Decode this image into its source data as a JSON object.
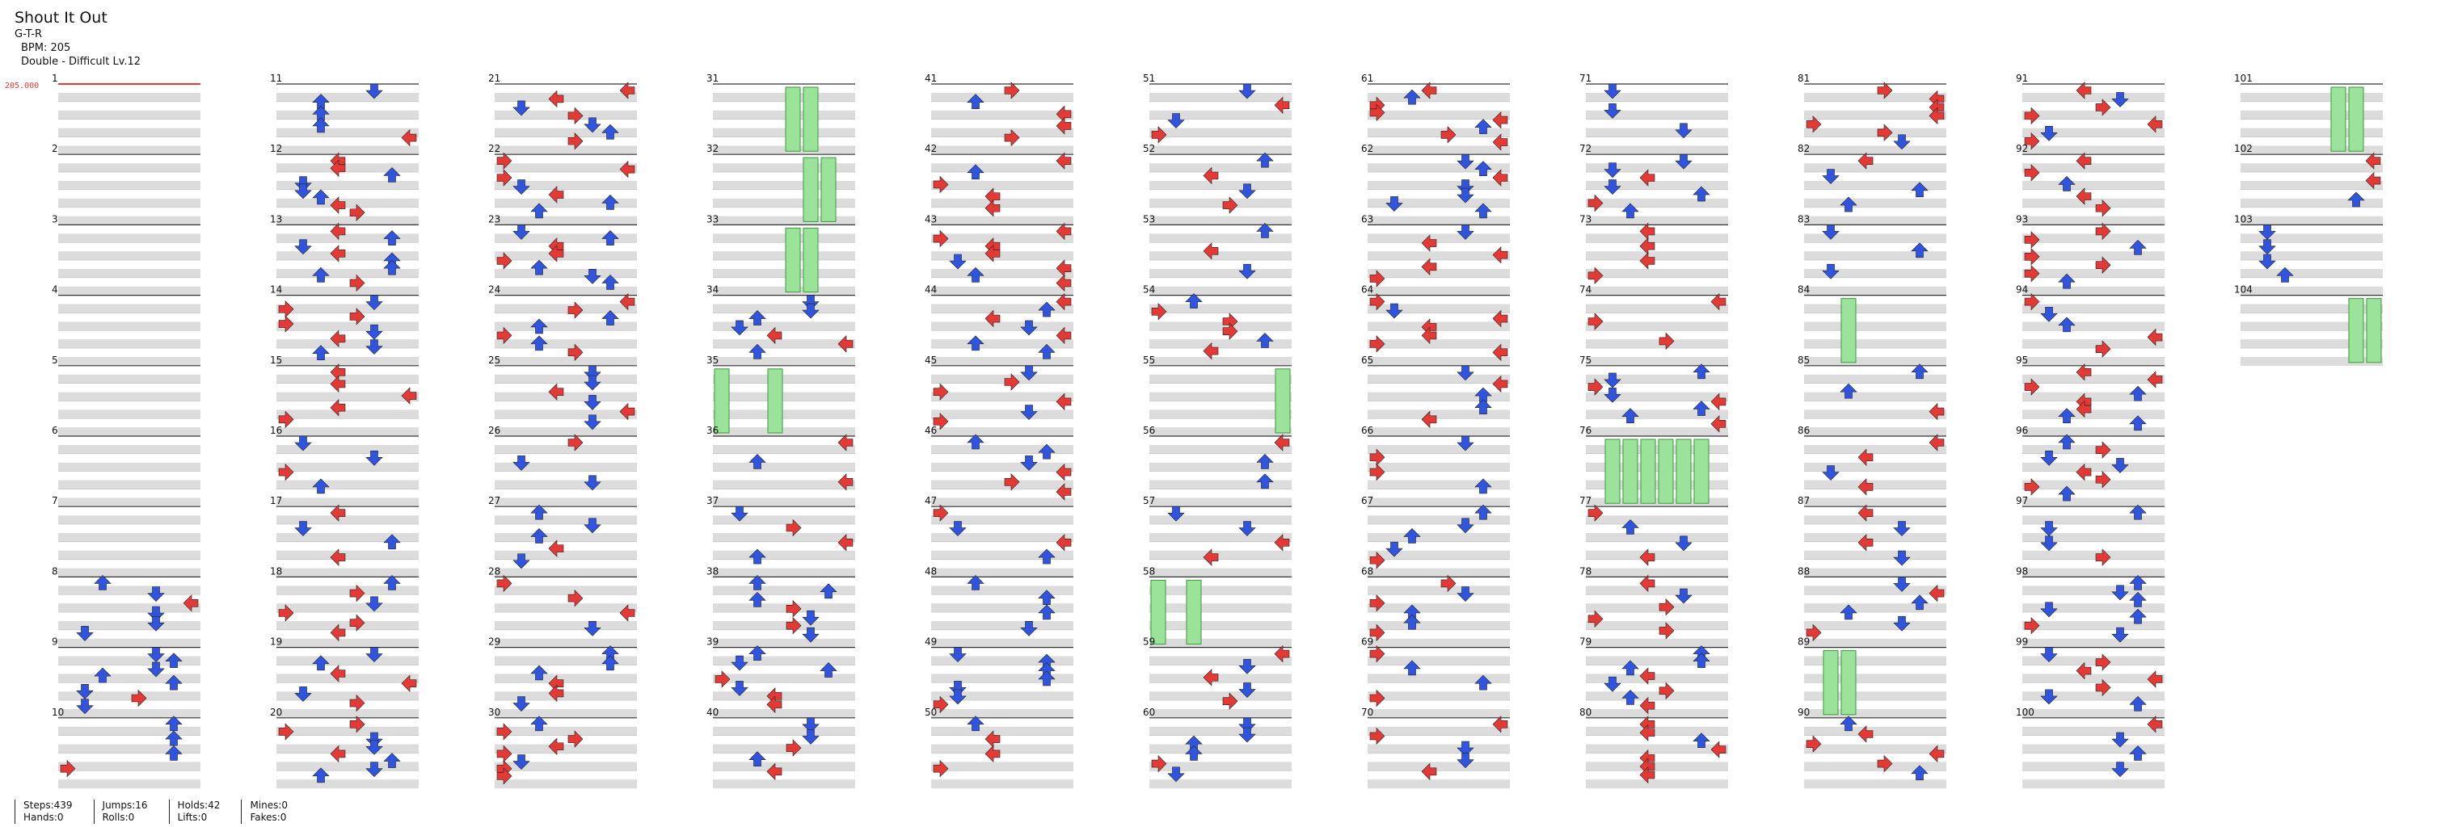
{
  "song": {
    "title": "Shout It Out",
    "artist": "G-T-R",
    "bpm_text": "BPM: 205",
    "difficulty_text": "Double - Difficult  Lv.12"
  },
  "bpm_marker": {
    "label": "205.000",
    "color": "#e53935"
  },
  "stats": [
    {
      "line1": "Steps:439",
      "line2": "Hands:0"
    },
    {
      "line1": "Jumps:16",
      "line2": "Rolls:0"
    },
    {
      "line1": "Holds:42",
      "line2": "Lifts:0"
    },
    {
      "line1": "Mines:0",
      "line2": "Fakes:0"
    }
  ],
  "colors": {
    "red_note": "#e53935",
    "blue_note": "#2f55e0",
    "yellow_note": "#f2d23b",
    "hold_body": "#9be39b",
    "hold_edge": "#3a9a3a",
    "row_shade": "#dcdcdc",
    "beat_line": "#333333"
  },
  "chart_data": {
    "type": "step-chart",
    "mode": "Double",
    "lanes": 8,
    "columns_layout": 11,
    "measures_per_column": 10,
    "total_measures": 104,
    "hold_regions": [
      {
        "measure": 31,
        "lanes": [
          4,
          5
        ]
      },
      {
        "measure": 32,
        "lanes": [
          5,
          6
        ]
      },
      {
        "measure": 33,
        "lanes": [
          4,
          5
        ]
      },
      {
        "measure": 35,
        "lanes": [
          0,
          3
        ]
      },
      {
        "measure": 55,
        "lanes": [
          7
        ]
      },
      {
        "measure": 58,
        "lanes": [
          0,
          2
        ]
      },
      {
        "measure": 76,
        "lanes": [
          1,
          2,
          3,
          4,
          5,
          6
        ]
      },
      {
        "measure": 84,
        "lanes": [
          2
        ]
      },
      {
        "measure": 89,
        "lanes": [
          1,
          2
        ]
      },
      {
        "measure": 101,
        "lanes": [
          5,
          6
        ]
      },
      {
        "measure": 104,
        "lanes": [
          6,
          7
        ]
      }
    ]
  }
}
